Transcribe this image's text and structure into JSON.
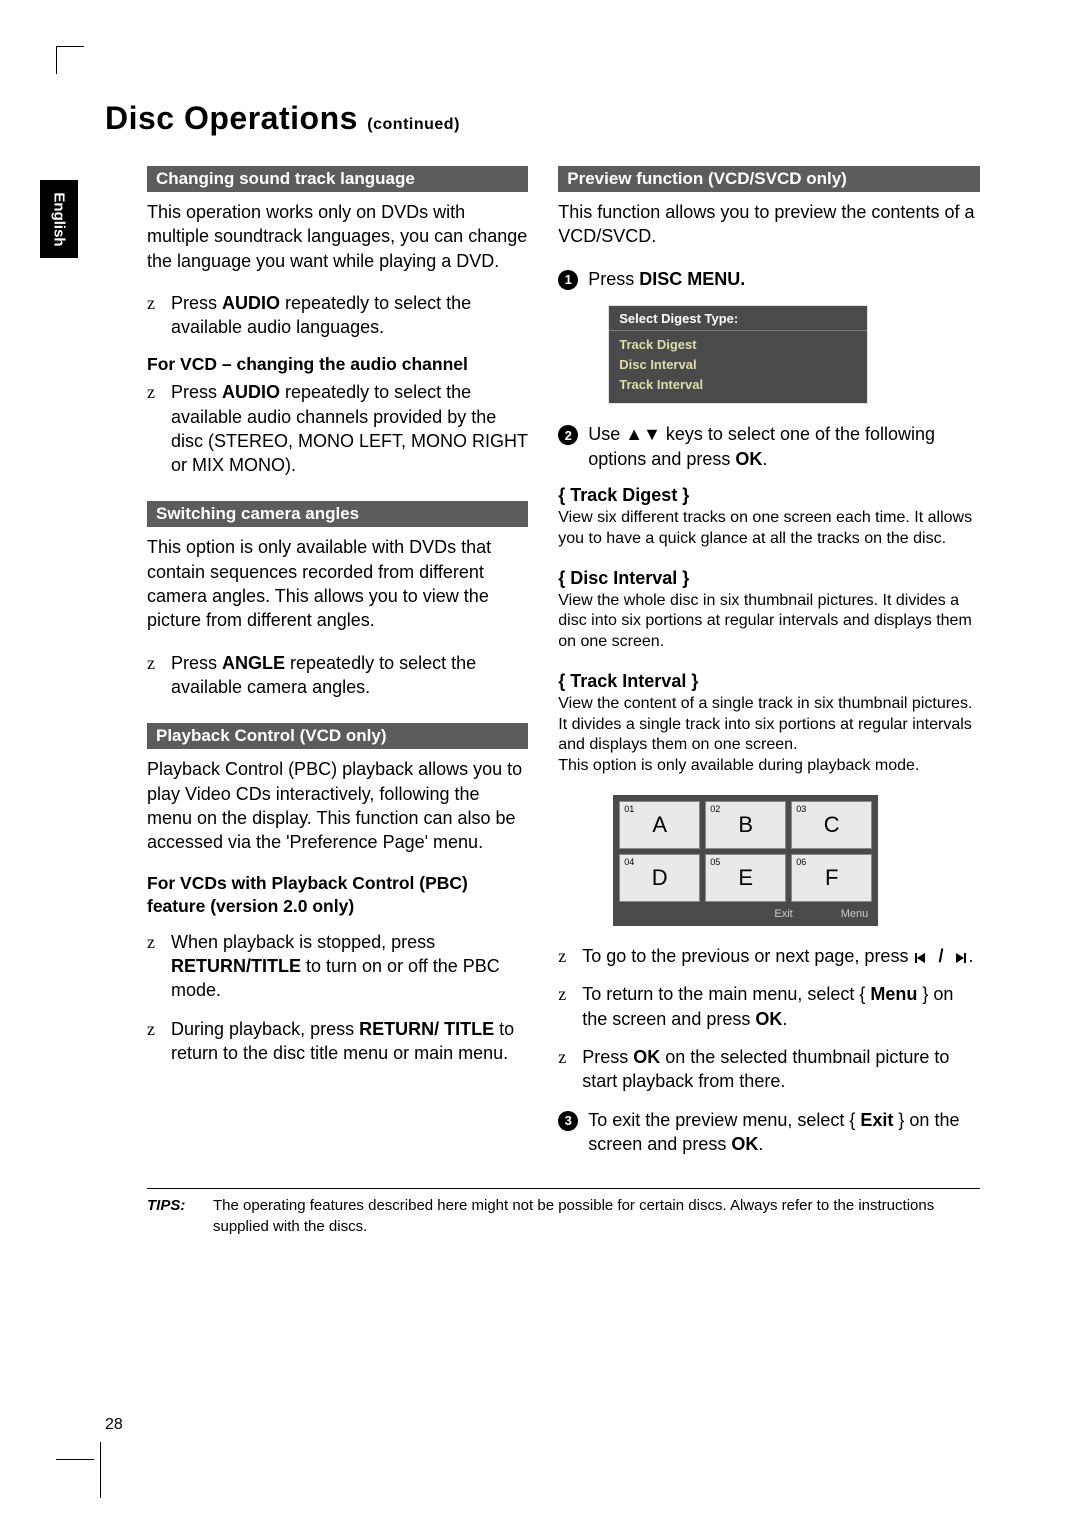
{
  "lang_tab": "English",
  "title_main": "Disc Operations",
  "title_sub": "(continued)",
  "left": {
    "sec1_bar": "Changing sound track language",
    "sec1_p1": "This operation works only on DVDs with multiple soundtrack languages, you can change the language you want while playing a DVD.",
    "sec1_b1_a": "Press ",
    "sec1_b1_b": "AUDIO",
    "sec1_b1_c": " repeatedly to select the available audio languages.",
    "sec1_sub": "For VCD – changing the audio channel",
    "sec1_b2_a": "Press ",
    "sec1_b2_b": "AUDIO",
    "sec1_b2_c": " repeatedly to select the available audio channels provided by the disc (STEREO, MONO LEFT, MONO RIGHT or MIX MONO).",
    "sec2_bar": "Switching camera angles",
    "sec2_p1": "This option is only available with DVDs that contain sequences recorded from different camera angles. This allows you to view the picture from different angles.",
    "sec2_b1_a": "Press ",
    "sec2_b1_b": "ANGLE",
    "sec2_b1_c": " repeatedly to select the available camera angles.",
    "sec3_bar": "Playback Control (VCD only)",
    "sec3_p1": "Playback Control (PBC) playback allows you to play Video CDs interactively, following the menu on the display.  This function can also be accessed via the 'Preference Page' menu.",
    "sec3_sub": "For VCDs with Playback Control (PBC) feature (version 2.0 only)",
    "sec3_b1_a": "When playback is stopped, press ",
    "sec3_b1_b": "RETURN/TITLE",
    "sec3_b1_c": " to turn on or off the PBC mode.",
    "sec3_b2_a": "During playback, press ",
    "sec3_b2_b": "RETURN/ TITLE",
    "sec3_b2_c": " to return to the disc title menu or main menu."
  },
  "right": {
    "sec1_bar": "Preview function (VCD/SVCD only)",
    "sec1_p1": "This function allows you to preview the contents of a VCD/SVCD.",
    "step1_a": "Press ",
    "step1_b": "DISC MENU.",
    "osd_title": "Select Digest Type:",
    "osd_items": [
      "Track Digest",
      "Disc Interval",
      "Track Interval"
    ],
    "step2_a": "Use ",
    "step2_b": " keys to select one of the following options and press ",
    "step2_c": "OK",
    "step2_d": ".",
    "opt1_h": "{ Track Digest }",
    "opt1_t": "View six different tracks on one screen each time.  It allows you to have a quick glance at all the tracks on the disc.",
    "opt2_h": "{ Disc Interval }",
    "opt2_t": "View the whole disc in six thumbnail pictures. It divides a disc into six portions at regular intervals and displays them on one screen.",
    "opt3_h": "{ Track Interval }",
    "opt3_t": "View the content of a single track in six thumbnail pictures.  It divides a single track into six portions at regular intervals and displays them on one screen.",
    "opt3_t2": "This option is only available during playback mode.",
    "thumbs": [
      {
        "n": "01",
        "l": "A"
      },
      {
        "n": "02",
        "l": "B"
      },
      {
        "n": "03",
        "l": "C"
      },
      {
        "n": "04",
        "l": "D"
      },
      {
        "n": "05",
        "l": "E"
      },
      {
        "n": "06",
        "l": "F"
      }
    ],
    "thumb_exit": "Exit",
    "thumb_menu": "Menu",
    "nav_b1": "To go to the previous or next page, press ",
    "nav_b2_a": "To return to the main menu, select { ",
    "nav_b2_b": "Menu",
    "nav_b2_c": " } on the screen and press ",
    "nav_b2_d": "OK",
    "nav_b2_e": ".",
    "nav_b3_a": "Press ",
    "nav_b3_b": "OK",
    "nav_b3_c": " on the selected thumbnail picture to start playback from there.",
    "step3_a": "To exit the preview menu, select { ",
    "step3_b": "Exit",
    "step3_c": " } on the screen and press ",
    "step3_d": "OK",
    "step3_e": "."
  },
  "tips_label": "TIPS:",
  "tips_text": "The operating features described here might not be possible for certain discs. Always refer to the instructions supplied with the discs.",
  "page_number": "28"
}
